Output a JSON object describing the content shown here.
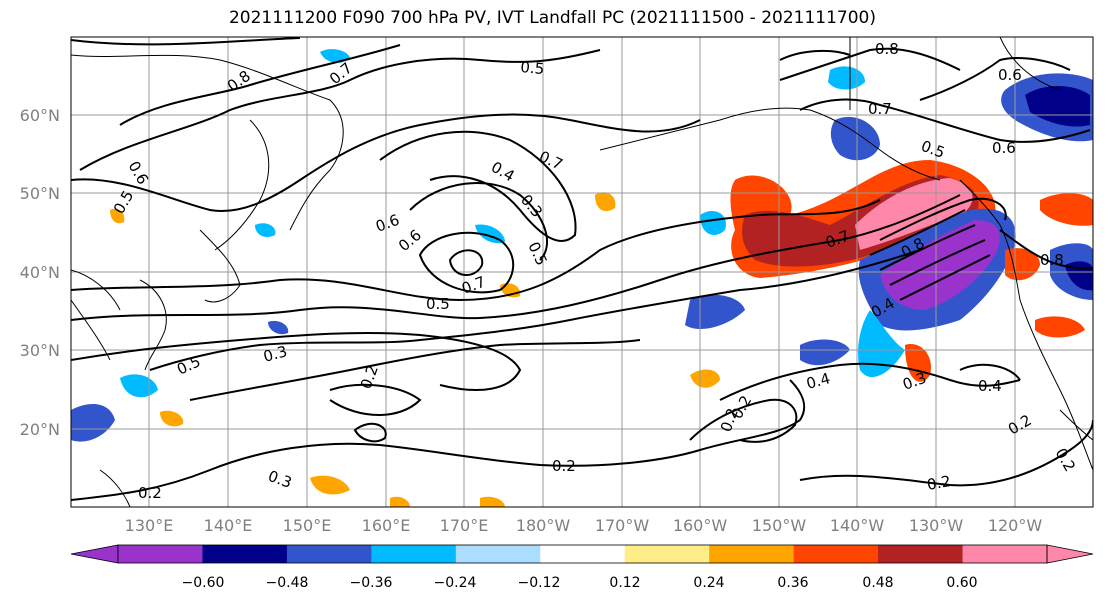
{
  "title": "2021111200 F090 700 hPa PV, IVT Landfall PC (2021111500 - 2021111700)",
  "lat_labels": [
    "60°N",
    "50°N",
    "40°N",
    "30°N",
    "20°N"
  ],
  "lon_labels": [
    "130°E",
    "140°E",
    "150°E",
    "160°E",
    "170°E",
    "180°W",
    "170°W",
    "160°W",
    "150°W",
    "140°W",
    "130°W",
    "120°W"
  ],
  "colorbar": {
    "colors": [
      "#9933cc",
      "#000088",
      "#3355cc",
      "#00bbff",
      "#aaddff",
      "#ffffff",
      "#ffee88",
      "#ffa500",
      "#ff4500",
      "#b22222",
      "#ff88aa"
    ],
    "tick_labels": [
      "−0.60",
      "−0.48",
      "−0.36",
      "−0.24",
      "−0.12",
      "0.12",
      "0.24",
      "0.36",
      "0.48",
      "0.60"
    ]
  },
  "contour_labels": [
    "0.8",
    "0.7",
    "0.5",
    "0.8",
    "0.6",
    "0.7",
    "0.6",
    "0.5",
    "0.8",
    "0.6",
    "0.5",
    "0.4",
    "0.7",
    "0.3",
    "0.5",
    "0.6",
    "0.6",
    "0.7",
    "0.5",
    "0.7",
    "0.8",
    "0.4",
    "0.5",
    "0.3",
    "0.2",
    "0.2",
    "0.4",
    "0.3",
    "0.4",
    "0.2",
    "0.2",
    "0.2",
    "0.2",
    "0.3",
    "0.2",
    "0.2"
  ]
}
